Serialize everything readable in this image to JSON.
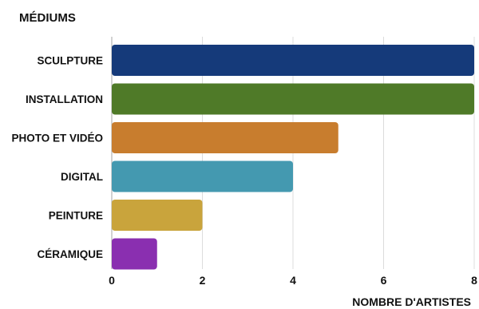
{
  "chart_data": {
    "type": "bar",
    "orientation": "horizontal",
    "title": "MÉDIUMS",
    "xlabel": "NOMBRE D'ARTISTES",
    "ylabel": "",
    "categories": [
      "SCULPTURE",
      "INSTALLATION",
      "PHOTO ET VIDÉO",
      "DIGITAL",
      "PEINTURE",
      "CÉRAMIQUE"
    ],
    "values": [
      8,
      8,
      5,
      4,
      2,
      1
    ],
    "colors": [
      "#153a7a",
      "#4f7a28",
      "#c87d2e",
      "#4499b0",
      "#c9a43c",
      "#8a2fb0"
    ],
    "xlim": [
      0,
      8
    ],
    "xticks": [
      0,
      2,
      4,
      6,
      8
    ],
    "grid": true
  }
}
